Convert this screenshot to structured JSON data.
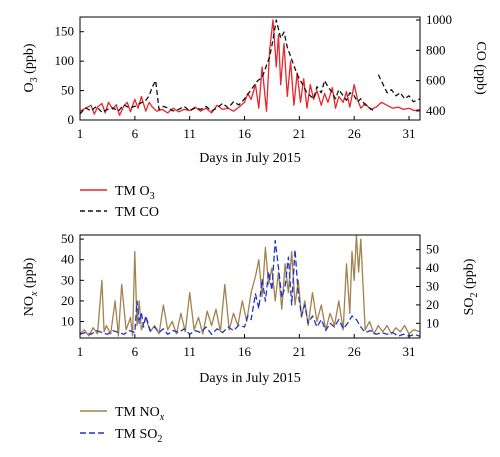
{
  "chart_data": [
    {
      "type": "line",
      "xlabel": "Days in July 2015",
      "x_ticks": [
        "1",
        "6",
        "11",
        "16",
        "21",
        "26",
        "31"
      ],
      "xlim": [
        1,
        32
      ],
      "y_left": {
        "label": "O3 (ppb)",
        "label_main": "O",
        "label_sub": "3",
        "label_rest": " (ppb)",
        "ticks": [
          "0",
          "50",
          "100",
          "150"
        ],
        "lim": [
          0,
          175
        ]
      },
      "y_right": {
        "label": "CO (ppb)",
        "ticks": [
          "400",
          "600",
          "800",
          "1000"
        ],
        "lim": [
          340,
          1020
        ]
      },
      "legend_position": "below",
      "series": [
        {
          "name": "TM O3",
          "legend_main": "TM O",
          "legend_sub": "3",
          "axis": "left",
          "color": "#e8262b",
          "dash": "solid",
          "x": [
            1,
            1.5,
            2,
            2.3,
            2.6,
            3,
            3.3,
            3.6,
            4,
            4.3,
            4.6,
            5,
            5.3,
            5.6,
            6,
            6.3,
            6.6,
            7,
            7.3,
            7.6,
            8,
            8.5,
            9,
            9.5,
            10,
            10.5,
            11,
            11.5,
            12,
            12.5,
            13,
            13.5,
            14,
            14.5,
            15,
            15.5,
            16,
            16.3,
            16.6,
            17,
            17.3,
            17.6,
            18,
            18.3,
            18.6,
            18.9,
            19.1,
            19.3,
            19.6,
            19.9,
            20.2,
            20.5,
            20.8,
            21.1,
            21.4,
            21.7,
            22,
            22.3,
            22.6,
            23,
            23.3,
            23.6,
            24,
            24.3,
            24.6,
            25,
            25.3,
            25.6,
            26,
            26.3,
            26.6,
            27,
            27.5,
            28,
            28.5,
            29,
            29.5,
            30,
            30.5,
            31,
            31.5,
            32
          ],
          "y": [
            15,
            20,
            25,
            10,
            22,
            28,
            12,
            30,
            18,
            26,
            8,
            24,
            30,
            14,
            35,
            20,
            40,
            15,
            30,
            22,
            15,
            18,
            12,
            20,
            14,
            18,
            16,
            22,
            15,
            20,
            12,
            25,
            18,
            20,
            15,
            22,
            30,
            45,
            35,
            60,
            20,
            90,
            15,
            120,
            170,
            90,
            145,
            60,
            130,
            40,
            100,
            25,
            80,
            30,
            70,
            20,
            60,
            35,
            50,
            25,
            45,
            30,
            55,
            20,
            40,
            30,
            48,
            22,
            60,
            35,
            20,
            28,
            18,
            22,
            30,
            25,
            20,
            22,
            18,
            20,
            16,
            18
          ]
        },
        {
          "name": "TM CO",
          "legend_main": "TM CO",
          "legend_sub": "",
          "axis": "right",
          "color": "#111111",
          "dash": "5,3",
          "x": [
            1,
            1.5,
            2,
            2.5,
            3,
            3.5,
            4,
            4.5,
            5,
            5.5,
            6,
            6.5,
            7,
            7.3,
            7.6,
            7.9,
            8.2,
            8.6,
            9,
            9.5,
            10,
            10.5,
            11,
            11.5,
            12,
            12.5,
            13,
            13.5,
            14,
            14.5,
            15,
            15.5,
            16,
            16.4,
            16.8,
            17.2,
            17.6,
            18,
            18.3,
            18.6,
            18.9,
            19.1,
            19.3,
            19.6,
            19.9,
            20.2,
            20.5,
            20.8,
            21.1,
            21.4,
            21.7,
            22,
            22.3,
            22.6,
            23,
            23.3,
            23.6,
            24,
            24.3,
            24.6,
            25,
            25.3,
            25.6,
            26,
            26.3,
            26.6,
            27,
            27.4,
            27.8,
            null,
            28.2,
            28.6,
            29,
            29.4,
            29.8,
            30.2,
            30.6,
            31,
            31.4,
            32
          ],
          "y": [
            380,
            420,
            400,
            430,
            390,
            410,
            420,
            400,
            440,
            420,
            430,
            450,
            470,
            500,
            560,
            600,
            410,
            430,
            420,
            400,
            410,
            430,
            400,
            420,
            410,
            430,
            400,
            420,
            450,
            420,
            460,
            440,
            480,
            520,
            560,
            600,
            620,
            700,
            760,
            870,
            1000,
            940,
            880,
            920,
            820,
            760,
            700,
            640,
            600,
            560,
            520,
            500,
            480,
            560,
            520,
            600,
            560,
            520,
            480,
            540,
            500,
            470,
            520,
            500,
            460,
            480,
            440,
            420,
            400,
            null,
            640,
            580,
            520,
            540,
            500,
            520,
            480,
            500,
            460,
            480
          ]
        }
      ]
    },
    {
      "type": "line",
      "xlabel": "Days in July 2015",
      "x_ticks": [
        "1",
        "6",
        "11",
        "16",
        "21",
        "26",
        "31"
      ],
      "xlim": [
        1,
        32
      ],
      "y_left": {
        "label": "NOx (ppb)",
        "label_main": "NO",
        "label_sub": "x",
        "label_rest": " (ppb)",
        "ticks": [
          "10",
          "20",
          "30",
          "40",
          "50"
        ],
        "lim": [
          2,
          52
        ]
      },
      "y_right": {
        "label": "SO2 (ppb)",
        "label_main": "SO",
        "label_sub": "2",
        "label_rest": " (ppb)",
        "ticks": [
          "10",
          "20",
          "30",
          "40",
          "50"
        ],
        "lim": [
          2,
          58
        ]
      },
      "legend_position": "below",
      "series": [
        {
          "name": "TM NOx",
          "legend_main": "TM NO",
          "legend_sub": "x",
          "axis": "left",
          "color": "#a0824e",
          "dash": "solid",
          "x": [
            1,
            1.4,
            1.8,
            2.2,
            2.6,
            3,
            3.2,
            3.4,
            3.8,
            4.2,
            4.5,
            4.8,
            5.2,
            5.6,
            5.8,
            6,
            6.2,
            6.4,
            6.6,
            7,
            7.4,
            7.8,
            8.2,
            8.6,
            9,
            9.4,
            9.8,
            10.2,
            10.6,
            11,
            11.4,
            11.8,
            12.2,
            12.6,
            13,
            13.4,
            13.8,
            14.2,
            14.6,
            15,
            15.4,
            15.8,
            16.2,
            16.6,
            17,
            17.3,
            17.6,
            17.9,
            18.2,
            18.5,
            18.8,
            19.1,
            19.4,
            19.7,
            20,
            20.3,
            20.6,
            20.9,
            21.2,
            21.5,
            21.8,
            22.2,
            22.6,
            23,
            23.4,
            23.8,
            24.2,
            24.6,
            25,
            25.3,
            25.6,
            25.8,
            26,
            26.2,
            26.4,
            26.6,
            27,
            27.4,
            27.8,
            28.2,
            28.6,
            29,
            29.4,
            29.8,
            30.2,
            30.6,
            31,
            31.4,
            32
          ],
          "y": [
            4,
            6,
            3,
            7,
            4,
            30,
            5,
            8,
            4,
            20,
            3,
            28,
            6,
            12,
            3,
            44,
            8,
            20,
            6,
            12,
            5,
            8,
            4,
            18,
            6,
            10,
            4,
            14,
            5,
            24,
            6,
            12,
            4,
            15,
            8,
            16,
            5,
            28,
            6,
            14,
            8,
            20,
            10,
            24,
            32,
            40,
            22,
            46,
            28,
            36,
            20,
            34,
            16,
            38,
            24,
            44,
            18,
            30,
            12,
            20,
            8,
            24,
            10,
            18,
            6,
            14,
            8,
            20,
            6,
            38,
            14,
            44,
            30,
            52,
            34,
            50,
            6,
            10,
            4,
            8,
            5,
            8,
            4,
            7,
            5,
            8,
            4,
            6,
            5
          ]
        },
        {
          "name": "TM SO2",
          "legend_main": "TM SO",
          "legend_sub": "2",
          "axis": "right",
          "color": "#2232c8",
          "dash": "6,3",
          "x": [
            1,
            1.5,
            2,
            2.5,
            3,
            3.5,
            4,
            4.5,
            5,
            5.5,
            6,
            6.2,
            6.4,
            6.6,
            6.8,
            7,
            7.4,
            7.8,
            8.2,
            8.6,
            9,
            9.5,
            10,
            10.5,
            11,
            11.5,
            12,
            12.5,
            13,
            13.5,
            14,
            14.5,
            15,
            15.5,
            16,
            16.3,
            16.6,
            17,
            17.3,
            17.6,
            17.9,
            18.2,
            18.5,
            18.8,
            19.1,
            19.4,
            19.7,
            20,
            20.3,
            20.6,
            20.9,
            21.2,
            21.5,
            21.8,
            22.2,
            22.6,
            23,
            23.4,
            23.8,
            24.2,
            24.6,
            25,
            25.4,
            25.8,
            26.2,
            26.6,
            27,
            27.5,
            28,
            28.5,
            29,
            29.5,
            30,
            30.5,
            31,
            31.5,
            32
          ],
          "y": [
            4,
            5,
            4,
            6,
            5,
            4,
            6,
            5,
            4,
            6,
            5,
            22,
            10,
            16,
            8,
            14,
            6,
            8,
            5,
            7,
            4,
            6,
            5,
            7,
            4,
            6,
            5,
            8,
            4,
            7,
            5,
            8,
            6,
            9,
            8,
            14,
            12,
            26,
            18,
            34,
            22,
            38,
            28,
            55,
            40,
            24,
            30,
            46,
            20,
            50,
            26,
            14,
            20,
            10,
            14,
            8,
            12,
            6,
            10,
            8,
            12,
            7,
            10,
            14,
            12,
            8,
            5,
            6,
            4,
            5,
            4,
            5,
            3,
            4,
            3,
            4,
            3
          ]
        }
      ]
    }
  ]
}
